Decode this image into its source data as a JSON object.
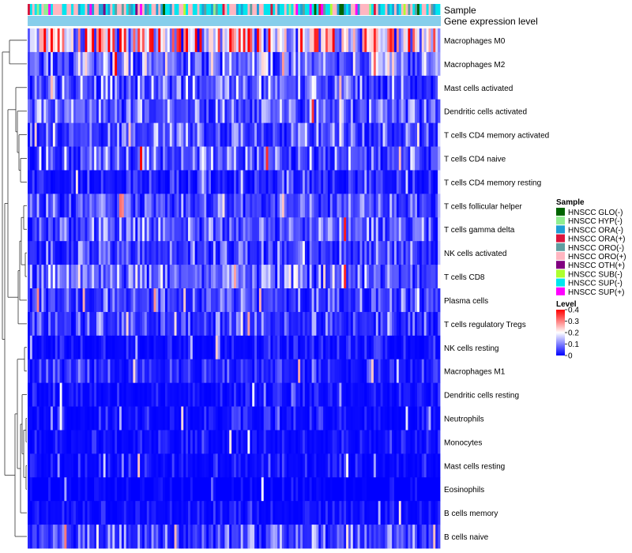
{
  "chart_data": {
    "type": "heatmap",
    "title": "",
    "n_samples": 180,
    "annotation_labels": {
      "sample": "Sample",
      "gene_expression": "Gene expression level"
    },
    "rows": [
      {
        "label": "Macrophages M0",
        "mean": 0.24,
        "spread": 0.14,
        "seed": 11
      },
      {
        "label": "Macrophages M2",
        "mean": 0.12,
        "spread": 0.09,
        "seed": 23
      },
      {
        "label": "Mast cells activated",
        "mean": 0.08,
        "spread": 0.09,
        "seed": 37
      },
      {
        "label": "Dendritic cells activated",
        "mean": 0.09,
        "spread": 0.07,
        "seed": 41
      },
      {
        "label": "T cells CD4 memory activated",
        "mean": 0.06,
        "spread": 0.08,
        "seed": 53
      },
      {
        "label": "T cells CD4 naive",
        "mean": 0.08,
        "spread": 0.09,
        "seed": 67
      },
      {
        "label": "T cells CD4 memory resting",
        "mean": 0.02,
        "spread": 0.05,
        "seed": 71
      },
      {
        "label": "T cells follicular helper",
        "mean": 0.07,
        "spread": 0.06,
        "seed": 83
      },
      {
        "label": "T cells gamma delta",
        "mean": 0.08,
        "spread": 0.07,
        "seed": 97
      },
      {
        "label": "NK cells activated",
        "mean": 0.06,
        "spread": 0.07,
        "seed": 101
      },
      {
        "label": "T cells CD8",
        "mean": 0.09,
        "spread": 0.09,
        "seed": 113
      },
      {
        "label": "Plasma cells",
        "mean": 0.06,
        "spread": 0.07,
        "seed": 127
      },
      {
        "label": "T cells regulatory  Tregs",
        "mean": 0.05,
        "spread": 0.07,
        "seed": 131
      },
      {
        "label": "NK cells resting",
        "mean": 0.01,
        "spread": 0.04,
        "seed": 149
      },
      {
        "label": "Macrophages M1",
        "mean": 0.03,
        "spread": 0.05,
        "seed": 151
      },
      {
        "label": "Dendritic cells resting",
        "mean": 0.01,
        "spread": 0.03,
        "seed": 163
      },
      {
        "label": "Neutrophils",
        "mean": 0.01,
        "spread": 0.04,
        "seed": 173
      },
      {
        "label": "Monocytes",
        "mean": 0.01,
        "spread": 0.03,
        "seed": 181
      },
      {
        "label": "Mast cells resting",
        "mean": 0.01,
        "spread": 0.04,
        "seed": 191
      },
      {
        "label": "Eosinophils",
        "mean": 0.0,
        "spread": 0.02,
        "seed": 197
      },
      {
        "label": "B cells memory",
        "mean": 0.01,
        "spread": 0.03,
        "seed": 211
      },
      {
        "label": "B cells naive",
        "mean": 0.06,
        "spread": 0.08,
        "seed": 223
      }
    ],
    "sample_groups": [
      {
        "name": "HNSCC GLO(-)",
        "color": "#006400",
        "weight": 0.03
      },
      {
        "name": "HNSCC HYP(-)",
        "color": "#90EE90",
        "weight": 0.04
      },
      {
        "name": "HNSCC ORA(-)",
        "color": "#1E9FD6",
        "weight": 0.14
      },
      {
        "name": "HNSCC ORA(+)",
        "color": "#DC143C",
        "weight": 0.03
      },
      {
        "name": "HNSCC ORO(-)",
        "color": "#5F9EA0",
        "weight": 0.08
      },
      {
        "name": "HNSCC ORO(+)",
        "color": "#FFB6C1",
        "weight": 0.3
      },
      {
        "name": "HNSCC OTH(+)",
        "color": "#800080",
        "weight": 0.01
      },
      {
        "name": "HNSCC SUB(-)",
        "color": "#ADFF2F",
        "weight": 0.02
      },
      {
        "name": "HNSCC SUP(-)",
        "color": "#00E5EE",
        "weight": 0.33
      },
      {
        "name": "HNSCC SUP(+)",
        "color": "#FF00FF",
        "weight": 0.02
      }
    ],
    "gene_expression_color": "#87CEEB",
    "color_scale": {
      "label": "Level",
      "min": 0,
      "max": 0.4,
      "ticks": [
        0.4,
        0.3,
        0.2,
        0.1,
        0
      ],
      "tick_labels": [
        "0.4",
        "0.3",
        "0.2",
        "0.1",
        "0"
      ],
      "low_color": "#0000FF",
      "mid_color": "#FFFFFF",
      "high_color": "#FF0000",
      "mid_value": 0.2
    }
  },
  "legend": {
    "sample_title": "Sample",
    "level_title": "Level"
  }
}
